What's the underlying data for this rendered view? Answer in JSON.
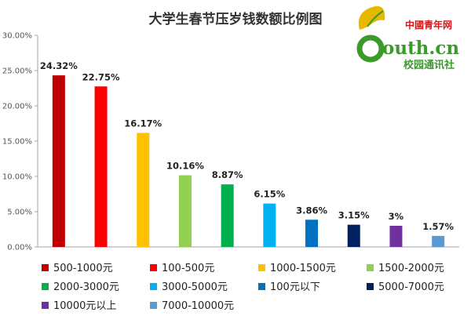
{
  "chart_data": {
    "type": "bar",
    "title": "大学生春节压岁钱数额比例图",
    "categories": [
      "500-1000元",
      "100-500元",
      "1000-1500元",
      "1500-2000元",
      "2000-3000元",
      "3000-5000元",
      "100元以下",
      "5000-7000元",
      "10000元以上",
      "7000-10000元"
    ],
    "values": [
      24.32,
      22.75,
      16.17,
      10.16,
      8.87,
      6.15,
      3.86,
      3.15,
      3,
      1.57
    ],
    "data_labels": [
      "24.32%",
      "22.75%",
      "16.17%",
      "10.16%",
      "8.87%",
      "6.15%",
      "3.86%",
      "3.15%",
      "3%",
      "1.57%"
    ],
    "colors": [
      "#C00000",
      "#FF0000",
      "#FFC000",
      "#92D050",
      "#00B050",
      "#00B0F0",
      "#0070C0",
      "#002060",
      "#7030A0",
      "#5B9BD5"
    ],
    "y_ticks": [
      "0.00%",
      "5.00%",
      "10.00%",
      "15.00%",
      "20.00%",
      "25.00%",
      "30.00%"
    ],
    "ylim": [
      0,
      30
    ],
    "grid": false,
    "legend_position": "bottom",
    "xlabel": "",
    "ylabel": ""
  },
  "logo": {
    "brand_line": "中國青年网",
    "site_text": "outh.cn",
    "tagline": "校园通讯社",
    "colors": {
      "green": "#3A9A2A",
      "red": "#D7141A",
      "leaf": "#E6B800"
    }
  }
}
